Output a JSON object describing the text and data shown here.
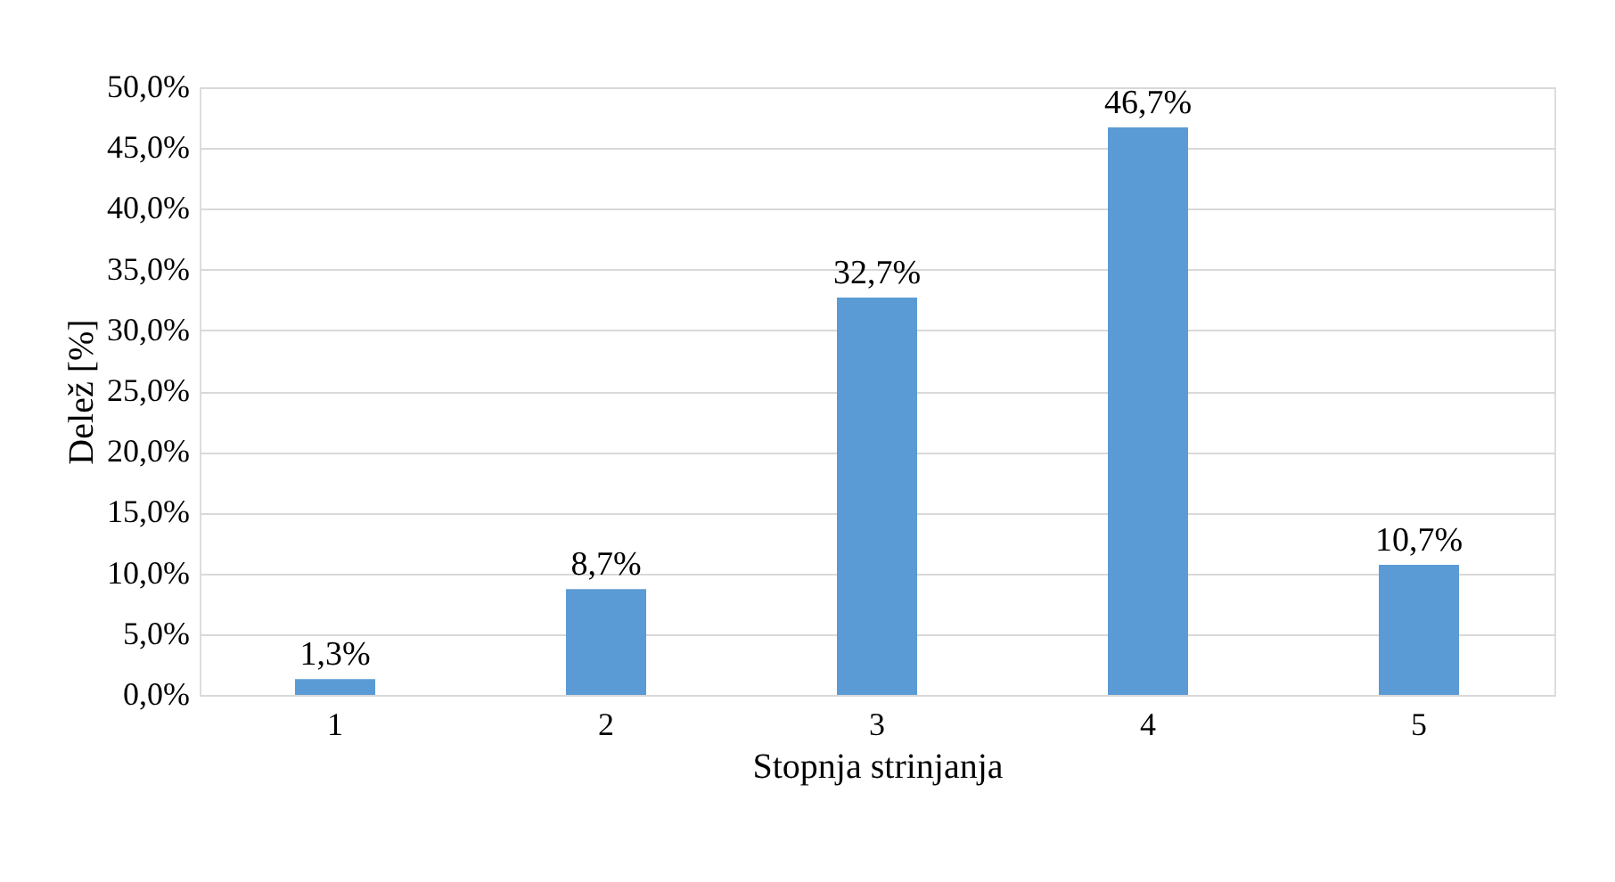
{
  "chart_data": {
    "type": "bar",
    "xlabel": "Stopnja strinjanja",
    "ylabel": "Delež [%]",
    "categories": [
      "1",
      "2",
      "3",
      "4",
      "5"
    ],
    "values": [
      1.3,
      8.7,
      32.7,
      46.7,
      10.7
    ],
    "value_labels": [
      "1,3%",
      "8,7%",
      "32,7%",
      "46,7%",
      "10,7%"
    ],
    "color": "#5b9bd5",
    "ylim": [
      0,
      50
    ],
    "yticks": [
      {
        "value": 0,
        "label": "0,0%"
      },
      {
        "value": 5,
        "label": "5,0%"
      },
      {
        "value": 10,
        "label": "10,0%"
      },
      {
        "value": 15,
        "label": "15,0%"
      },
      {
        "value": 20,
        "label": "20,0%"
      },
      {
        "value": 25,
        "label": "25,0%"
      },
      {
        "value": 30,
        "label": "30,0%"
      },
      {
        "value": 35,
        "label": "35,0%"
      },
      {
        "value": 40,
        "label": "40,0%"
      },
      {
        "value": 45,
        "label": "45,0%"
      },
      {
        "value": 50,
        "label": "50,0%"
      }
    ],
    "grid": "y"
  }
}
